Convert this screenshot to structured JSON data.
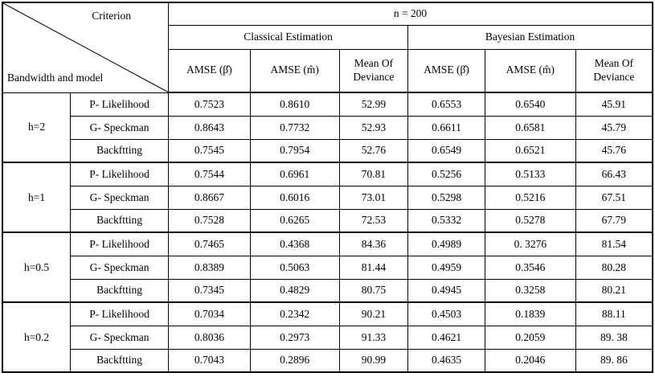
{
  "table": {
    "corner_top": "Criterion",
    "corner_bottom": "Bandwidth and model",
    "n_header": "n = 200",
    "section_headers": [
      "Classical Estimation",
      "Bayesian Estimation"
    ],
    "col_headers": [
      "AMSE (β̂)",
      "AMSE (m̂)",
      "Mean Of Deviance",
      "AMSE (β̂)",
      "AMSE (m̂)",
      "Mean Of Deviance"
    ],
    "row_groups": [
      {
        "bandwidth": "h=2",
        "rows": [
          {
            "model": "P- Likelihood",
            "values": [
              "0.7523",
              "0.8610",
              "52.99",
              "0.6553",
              "0.6540",
              "45.91"
            ]
          },
          {
            "model": "G- Speckman",
            "values": [
              "0.8643",
              "0.7732",
              "52.93",
              "0.6611",
              "0.6581",
              "45.79"
            ]
          },
          {
            "model": "Backftting",
            "values": [
              "0.7545",
              "0.7954",
              "52.76",
              "0.6549",
              "0.6521",
              "45.76"
            ]
          }
        ]
      },
      {
        "bandwidth": "h=1",
        "rows": [
          {
            "model": "P- Likelihood",
            "values": [
              "0.7544",
              "0.6961",
              "70.81",
              "0.5256",
              "0.5133",
              "66.43"
            ]
          },
          {
            "model": "G- Speckman",
            "values": [
              "0.8667",
              "0.6016",
              "73.01",
              "0.5298",
              "0.5216",
              "67.51"
            ]
          },
          {
            "model": "Backftting",
            "values": [
              "0.7528",
              "0.6265",
              "72.53",
              "0.5332",
              "0.5278",
              "67.79"
            ]
          }
        ]
      },
      {
        "bandwidth": "h=0.5",
        "rows": [
          {
            "model": "P- Likelihood",
            "values": [
              "0.7465",
              "0.4368",
              "84.36",
              "0.4989",
              "0. 3276",
              "81.54"
            ]
          },
          {
            "model": "G- Speckman",
            "values": [
              "0.8389",
              "0.5063",
              "81.44",
              "0.4959",
              "0.3546",
              "80.28"
            ]
          },
          {
            "model": "Backftting",
            "values": [
              "0.7345",
              "0.4829",
              "80.75",
              "0.4945",
              "0.3258",
              "80.21"
            ]
          }
        ]
      },
      {
        "bandwidth": "h=0.2",
        "rows": [
          {
            "model": "P- Likelihood",
            "values": [
              "0.7034",
              "0.2342",
              "90.21",
              "0.4503",
              "0.1839",
              "88.11"
            ]
          },
          {
            "model": "G- Speckman",
            "values": [
              "0.8036",
              "0.2973",
              "91.33",
              "0.4621",
              "0.2059",
              "89. 38"
            ]
          },
          {
            "model": "Backftting",
            "values": [
              "0.7043",
              "0.2896",
              "90.99",
              "0.4635",
              "0.2046",
              "89. 86"
            ]
          }
        ]
      }
    ]
  }
}
